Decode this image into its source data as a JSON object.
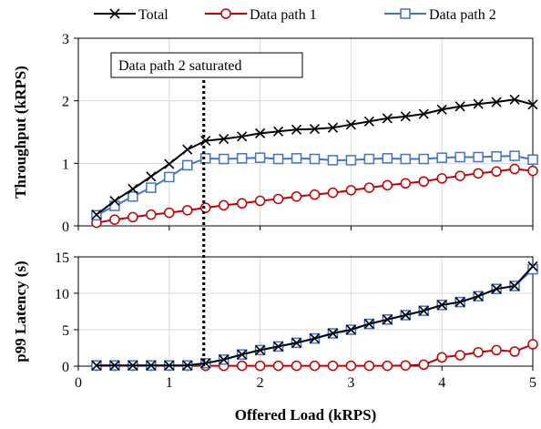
{
  "chart_data": [
    {
      "type": "line",
      "panel": "top",
      "ylabel": "Throughput (kRPS)",
      "xlim": [
        0,
        5
      ],
      "ylim": [
        0,
        3
      ],
      "xticks": [
        "0",
        "1",
        "2",
        "3",
        "4",
        "5"
      ],
      "yticks": [
        "0",
        "1",
        "2",
        "3"
      ],
      "grid": true,
      "annotation": {
        "text": "Data path 2 saturated",
        "x": 1.38
      },
      "series": [
        {
          "name": "Total",
          "color": "#000000",
          "marker": "x",
          "x": [
            0.2,
            0.4,
            0.6,
            0.8,
            1.0,
            1.2,
            1.4,
            1.6,
            1.8,
            2.0,
            2.2,
            2.4,
            2.6,
            2.8,
            3.0,
            3.2,
            3.4,
            3.6,
            3.8,
            4.0,
            4.2,
            4.4,
            4.6,
            4.8,
            5.0
          ],
          "y": [
            0.18,
            0.4,
            0.59,
            0.79,
            0.99,
            1.22,
            1.36,
            1.39,
            1.43,
            1.48,
            1.51,
            1.54,
            1.55,
            1.57,
            1.62,
            1.67,
            1.72,
            1.75,
            1.79,
            1.86,
            1.91,
            1.95,
            1.98,
            2.02,
            1.94
          ]
        },
        {
          "name": "Data path 1",
          "color": "#c00000",
          "marker": "circle",
          "x": [
            0.2,
            0.4,
            0.6,
            0.8,
            1.0,
            1.2,
            1.4,
            1.6,
            1.8,
            2.0,
            2.2,
            2.4,
            2.6,
            2.8,
            3.0,
            3.2,
            3.4,
            3.6,
            3.8,
            4.0,
            4.2,
            4.4,
            4.6,
            4.8,
            5.0
          ],
          "y": [
            0.05,
            0.1,
            0.14,
            0.18,
            0.21,
            0.25,
            0.29,
            0.33,
            0.36,
            0.4,
            0.43,
            0.47,
            0.5,
            0.53,
            0.57,
            0.61,
            0.65,
            0.68,
            0.71,
            0.76,
            0.8,
            0.84,
            0.87,
            0.91,
            0.88
          ]
        },
        {
          "name": "Data path 2",
          "color": "#4472c4",
          "marker": "square",
          "x": [
            0.2,
            0.4,
            0.6,
            0.8,
            1.0,
            1.2,
            1.4,
            1.6,
            1.8,
            2.0,
            2.2,
            2.4,
            2.6,
            2.8,
            3.0,
            3.2,
            3.4,
            3.6,
            3.8,
            4.0,
            4.2,
            4.4,
            4.6,
            4.8,
            5.0
          ],
          "y": [
            0.17,
            0.32,
            0.47,
            0.61,
            0.78,
            0.97,
            1.08,
            1.07,
            1.08,
            1.09,
            1.07,
            1.08,
            1.07,
            1.05,
            1.05,
            1.07,
            1.08,
            1.07,
            1.07,
            1.09,
            1.1,
            1.1,
            1.11,
            1.12,
            1.06
          ]
        }
      ]
    },
    {
      "type": "line",
      "panel": "bottom",
      "xlabel": "Offered Load (kRPS)",
      "ylabel": "p99 Latency (s)",
      "xlim": [
        0,
        5
      ],
      "ylim": [
        0,
        15
      ],
      "xticks": [
        "0",
        "1",
        "2",
        "3",
        "4",
        "5"
      ],
      "yticks": [
        "0",
        "5",
        "10",
        "15"
      ],
      "grid": true,
      "series": [
        {
          "name": "Total",
          "color": "#000000",
          "marker": "x",
          "x": [
            0.2,
            0.4,
            0.6,
            0.8,
            1.0,
            1.2,
            1.4,
            1.6,
            1.8,
            2.0,
            2.2,
            2.4,
            2.6,
            2.8,
            3.0,
            3.2,
            3.4,
            3.6,
            3.8,
            4.0,
            4.2,
            4.4,
            4.6,
            4.8,
            5.0
          ],
          "y": [
            0.1,
            0.1,
            0.1,
            0.1,
            0.1,
            0.1,
            0.4,
            0.9,
            1.6,
            2.2,
            2.7,
            3.2,
            3.8,
            4.5,
            5.0,
            5.8,
            6.4,
            7.0,
            7.6,
            8.4,
            8.8,
            9.6,
            10.6,
            11.0,
            13.7
          ]
        },
        {
          "name": "Data path 1",
          "color": "#c00000",
          "marker": "circle",
          "x": [
            0.2,
            0.4,
            0.6,
            0.8,
            1.0,
            1.2,
            1.4,
            1.6,
            1.8,
            2.0,
            2.2,
            2.4,
            2.6,
            2.8,
            3.0,
            3.2,
            3.4,
            3.6,
            3.8,
            4.0,
            4.2,
            4.4,
            4.6,
            4.8,
            5.0
          ],
          "y": [
            0.05,
            0.05,
            0.05,
            0.05,
            0.05,
            0.05,
            0.05,
            0.05,
            0.05,
            0.05,
            0.05,
            0.05,
            0.05,
            0.05,
            0.05,
            0.05,
            0.05,
            0.1,
            0.2,
            1.2,
            1.5,
            1.9,
            2.2,
            2.0,
            3.0
          ]
        },
        {
          "name": "Data path 2",
          "color": "#4472c4",
          "marker": "square",
          "x": [
            0.2,
            0.4,
            0.6,
            0.8,
            1.0,
            1.2,
            1.4,
            1.6,
            1.8,
            2.0,
            2.2,
            2.4,
            2.6,
            2.8,
            3.0,
            3.2,
            3.4,
            3.6,
            3.8,
            4.0,
            4.2,
            4.4,
            4.6,
            4.8,
            5.0
          ],
          "y": [
            0.1,
            0.1,
            0.1,
            0.1,
            0.1,
            0.1,
            0.4,
            0.9,
            1.6,
            2.2,
            2.7,
            3.2,
            3.8,
            4.5,
            5.0,
            5.8,
            6.4,
            7.0,
            7.6,
            8.4,
            8.8,
            9.6,
            10.6,
            11.0,
            13.3
          ]
        }
      ]
    }
  ],
  "legend": [
    {
      "label": "Total",
      "color": "#000000",
      "marker": "x"
    },
    {
      "label": "Data path 1",
      "color": "#c00000",
      "marker": "circle"
    },
    {
      "label": "Data path 2",
      "color": "#4472c4",
      "marker": "square"
    }
  ]
}
